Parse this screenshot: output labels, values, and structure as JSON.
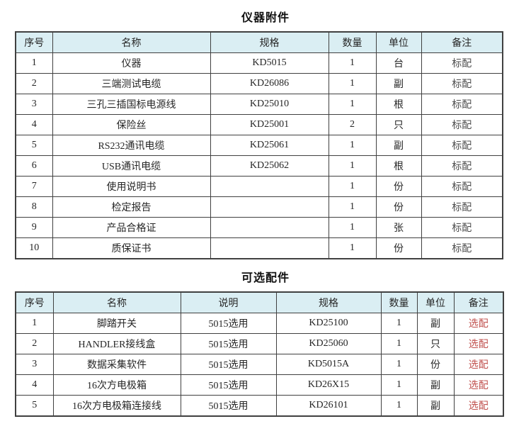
{
  "colors": {
    "header_bg": "#daeef3",
    "border": "#404040",
    "text": "#262626",
    "standard_note": "#4d4d4d",
    "optional_note": "#c0504d"
  },
  "table1": {
    "title": "仪器附件",
    "headers": [
      "序号",
      "名称",
      "规格",
      "数量",
      "单位",
      "备注"
    ],
    "rows": [
      [
        "1",
        "仪器",
        "KD5015",
        "1",
        "台",
        "标配"
      ],
      [
        "2",
        "三端测试电缆",
        "KD26086",
        "1",
        "副",
        "标配"
      ],
      [
        "3",
        "三孔三插国标电源线",
        "KD25010",
        "1",
        "根",
        "标配"
      ],
      [
        "4",
        "保险丝",
        "KD25001",
        "2",
        "只",
        "标配"
      ],
      [
        "5",
        "RS232通讯电缆",
        "KD25061",
        "1",
        "副",
        "标配"
      ],
      [
        "6",
        "USB通讯电缆",
        "KD25062",
        "1",
        "根",
        "标配"
      ],
      [
        "7",
        "使用说明书",
        "",
        "1",
        "份",
        "标配"
      ],
      [
        "8",
        "检定报告",
        "",
        "1",
        "份",
        "标配"
      ],
      [
        "9",
        "产品合格证",
        "",
        "1",
        "张",
        "标配"
      ],
      [
        "10",
        "质保证书",
        "",
        "1",
        "份",
        "标配"
      ]
    ],
    "note_style": "note-standard"
  },
  "table2": {
    "title": "可选配件",
    "headers": [
      "序号",
      "名称",
      "说明",
      "规格",
      "数量",
      "单位",
      "备注"
    ],
    "rows": [
      [
        "1",
        "脚踏开关",
        "5015选用",
        "KD25100",
        "1",
        "副",
        "选配"
      ],
      [
        "2",
        "HANDLER接线盒",
        "5015选用",
        "KD25060",
        "1",
        "只",
        "选配"
      ],
      [
        "3",
        "数据采集软件",
        "5015选用",
        "KD5015A",
        "1",
        "份",
        "选配"
      ],
      [
        "4",
        "16次方电极箱",
        "5015选用",
        "KD26X15",
        "1",
        "副",
        "选配"
      ],
      [
        "5",
        "16次方电极箱连接线",
        "5015选用",
        "KD26101",
        "1",
        "副",
        "选配"
      ]
    ],
    "note_style": "note-optional"
  }
}
